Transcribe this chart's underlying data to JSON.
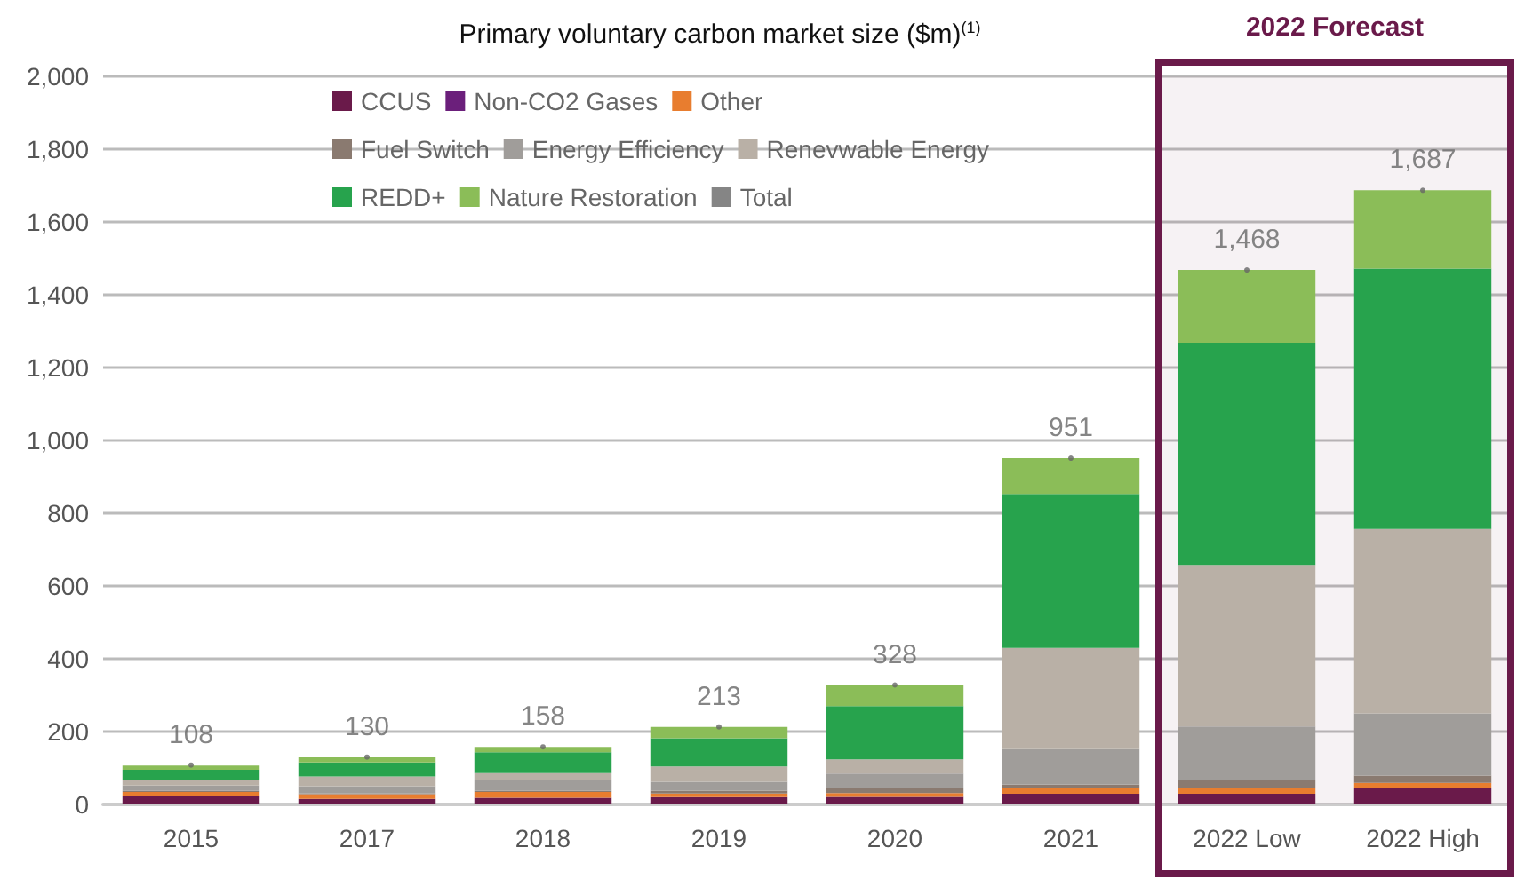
{
  "chart_data": {
    "type": "bar",
    "stacked": true,
    "title": "Primary voluntary carbon market size ($m)$^{(1)}$",
    "categories": [
      "2015",
      "2017",
      "2018",
      "2019",
      "2020",
      "2021",
      "2022 Low",
      "2022 High"
    ],
    "series": [
      {
        "name": "CCUS",
        "color": "#6a1a4a",
        "values": [
          24,
          15,
          18,
          20,
          21,
          29,
          29,
          44
        ]
      },
      {
        "name": "Non-CO2 Gases",
        "color": "#6b1f7b",
        "values": [
          null,
          null,
          null,
          null,
          null,
          null,
          null,
          null
        ]
      },
      {
        "name": "Other",
        "color": "#e87d2f",
        "values": [
          10,
          13,
          16,
          10,
          10,
          15,
          15,
          15
        ]
      },
      {
        "name": "Fuel Switch",
        "color": "#8a7a70",
        "values": [
          3,
          2,
          3,
          8,
          15,
          10,
          24,
          20
        ]
      },
      {
        "name": "Energy Efficiency",
        "color": "#a09d9a",
        "values": [
          15,
          20,
          30,
          24,
          39,
          98,
          146,
          171
        ]
      },
      {
        "name": "Renevwable Energy",
        "color": "#b9b0a6",
        "values": [
          15,
          27,
          19,
          42,
          39,
          278,
          444,
          507
        ]
      },
      {
        "name": "REDD+",
        "color": "#27a34d",
        "values": [
          28,
          38,
          57,
          78,
          146,
          423,
          610,
          715
        ]
      },
      {
        "name": "Nature Restoration",
        "color": "#8bbd58",
        "values": [
          12,
          14,
          15,
          31,
          58,
          98,
          200,
          215
        ]
      },
      {
        "name": "Total",
        "type": "scatter",
        "marker": "circle",
        "color": "#666666",
        "values": [
          108,
          130,
          158,
          213,
          328,
          951,
          1468,
          1687
        ],
        "value_labels": [
          "108",
          "130",
          "158",
          "213",
          "328",
          "951",
          "1,468",
          "1,687"
        ]
      }
    ],
    "ylim": [
      0,
      2000
    ],
    "yticks": [
      0,
      {
        "value": 200,
        "label": "200"
      },
      {
        "value": 400,
        "label": "400"
      },
      {
        "value": 600,
        "label": "600"
      },
      {
        "value": 800,
        "label": "800"
      },
      {
        "value": 1000,
        "label": "1,000"
      },
      {
        "value": 1200,
        "label": "1,200"
      },
      {
        "value": 1400,
        "label": "1,400"
      },
      {
        "value": 1600,
        "label": "1,600"
      },
      {
        "value": 1800,
        "label": "1,800"
      },
      {
        "value": 2000,
        "label": "2,000"
      }
    ],
    "grid": "y",
    "legend": "top left",
    "bands": [
      {
        "axis": "x",
        "from": "2022 Low",
        "to": "2022 High",
        "label": "2022 Forecast",
        "color": "#6a1a4a"
      }
    ]
  }
}
